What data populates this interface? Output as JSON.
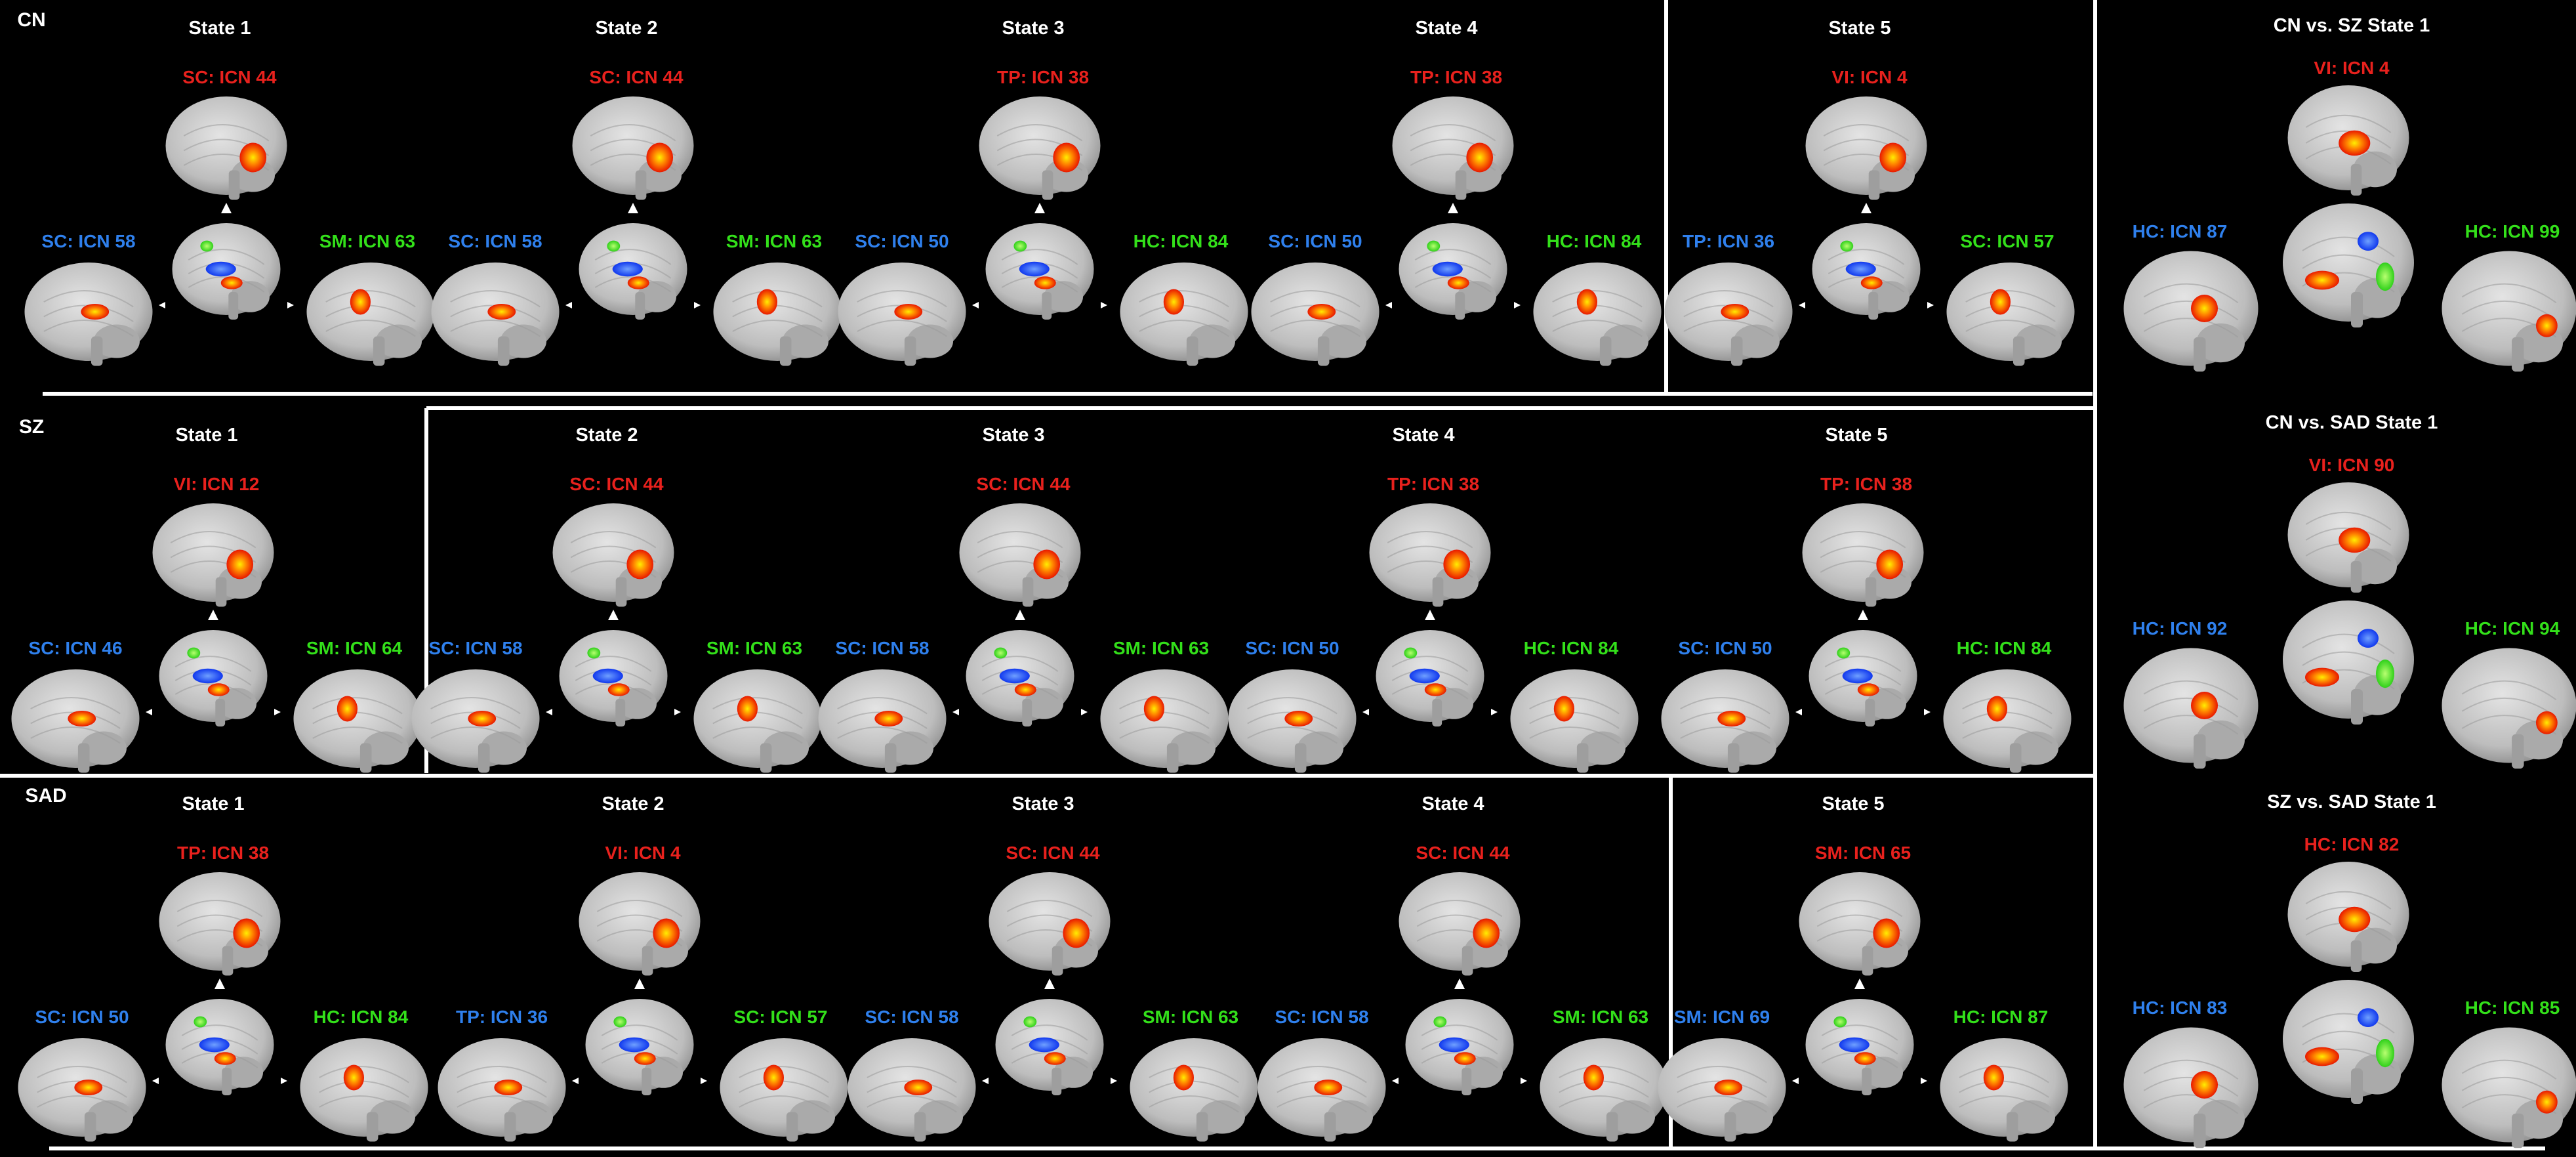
{
  "colors": {
    "background": "#000000",
    "divider": "#ffffff",
    "title": "#ffffff",
    "label_red": "#e8211d",
    "label_blue": "#2f80ed",
    "label_green": "#33e01a",
    "activation_red": "#ff2200",
    "activation_yellow": "#ffee00",
    "activation_blue": "#1040ff",
    "activation_green": "#40e020",
    "brain_gray": "#c9c9c9"
  },
  "icons": [
    "sagittal-brain-icon",
    "arrow-up-icon",
    "arrow-left-icon",
    "arrow-right-icon"
  ],
  "groups": [
    {
      "label": "CN",
      "states": [
        {
          "title": "State 1",
          "top": "SC: ICN 44",
          "left": "SC: ICN 58",
          "right": "SM: ICN 63"
        },
        {
          "title": "State 2",
          "top": "SC: ICN 44",
          "left": "SC: ICN 58",
          "right": "SM: ICN 63"
        },
        {
          "title": "State 3",
          "top": "TP: ICN 38",
          "left": "SC: ICN 50",
          "right": "HC: ICN 84"
        },
        {
          "title": "State 4",
          "top": "TP: ICN 38",
          "left": "SC: ICN 50",
          "right": "HC: ICN 84"
        },
        {
          "title": "State 5",
          "top": "VI: ICN 4",
          "left": "TP: ICN 36",
          "right": "SC: ICN 57"
        }
      ]
    },
    {
      "label": "SZ",
      "states": [
        {
          "title": "State 1",
          "top": "VI: ICN 12",
          "left": "SC: ICN 46",
          "right": "SM: ICN 64"
        },
        {
          "title": "State 2",
          "top": "SC: ICN 44",
          "left": "SC: ICN 58",
          "right": "SM: ICN 63"
        },
        {
          "title": "State 3",
          "top": "SC: ICN 44",
          "left": "SC: ICN 58",
          "right": "SM: ICN 63"
        },
        {
          "title": "State 4",
          "top": "TP: ICN 38",
          "left": "SC: ICN 50",
          "right": "HC: ICN 84"
        },
        {
          "title": "State 5",
          "top": "TP: ICN 38",
          "left": "SC: ICN 50",
          "right": "HC: ICN 84"
        }
      ]
    },
    {
      "label": "SAD",
      "states": [
        {
          "title": "State 1",
          "top": "TP: ICN 38",
          "left": "SC: ICN 50",
          "right": "HC: ICN 84"
        },
        {
          "title": "State 2",
          "top": "VI: ICN 4",
          "left": "TP: ICN 36",
          "right": "SC: ICN 57"
        },
        {
          "title": "State 3",
          "top": "SC: ICN 44",
          "left": "SC: ICN 58",
          "right": "SM: ICN 63"
        },
        {
          "title": "State 4",
          "top": "SC: ICN 44",
          "left": "SC: ICN 58",
          "right": "SM: ICN 63"
        },
        {
          "title": "State 5",
          "top": "SM: ICN 65",
          "left": "SM: ICN 69",
          "right": "HC: ICN 87"
        }
      ]
    }
  ],
  "comparisons": [
    {
      "title": "CN vs. SZ State 1",
      "top": "VI: ICN 4",
      "left": "HC: ICN 87",
      "right": "HC: ICN 99"
    },
    {
      "title": "CN vs. SAD State 1",
      "top": "VI: ICN 90",
      "left": "HC: ICN 92",
      "right": "HC: ICN 94"
    },
    {
      "title": "SZ vs. SAD State 1",
      "top": "HC: ICN 82",
      "left": "HC: ICN 83",
      "right": "HC: ICN 85"
    }
  ]
}
